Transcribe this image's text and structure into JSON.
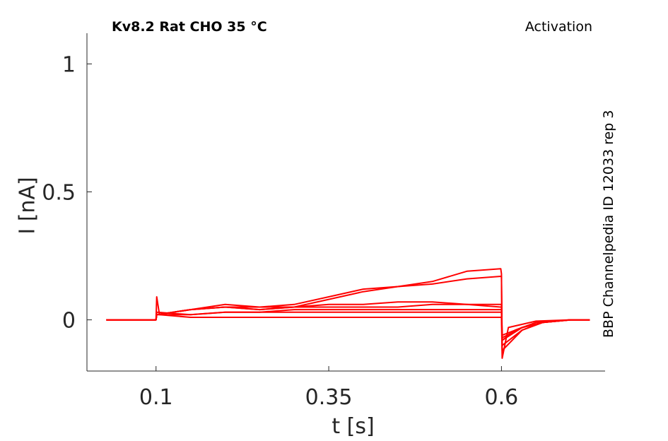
{
  "chart_data": {
    "type": "line",
    "title": "Kv8.2  Rat  CHO  35 °C",
    "protocol_label": "Activation",
    "side_label": "BBP Channelpedia ID 12033 rep 3",
    "xlabel": "t [s]",
    "ylabel": "I [nA]",
    "xlim": [
      0.0,
      0.75
    ],
    "ylim": [
      -0.2,
      1.12
    ],
    "xticks": [
      0.1,
      0.35,
      0.6
    ],
    "xtick_labels": [
      "0.1",
      "0.35",
      "0.6"
    ],
    "yticks": [
      0,
      0.5,
      1
    ],
    "ytick_labels": [
      "0",
      "0.5",
      "1"
    ],
    "grid": false,
    "line_color": "#ff0000",
    "series": [
      {
        "x": [
          0.028,
          0.1,
          0.101,
          0.105,
          0.15,
          0.2,
          0.25,
          0.3,
          0.35,
          0.4,
          0.45,
          0.5,
          0.55,
          0.599,
          0.6,
          0.601,
          0.61,
          0.65,
          0.7,
          0.728
        ],
        "y": [
          0.0,
          0.0,
          0.09,
          0.02,
          0.01,
          0.01,
          0.01,
          0.01,
          0.01,
          0.01,
          0.01,
          0.01,
          0.01,
          0.01,
          0.01,
          -0.15,
          -0.03,
          -0.005,
          0.0,
          0.0
        ]
      },
      {
        "x": [
          0.028,
          0.1,
          0.101,
          0.15,
          0.2,
          0.25,
          0.3,
          0.35,
          0.4,
          0.45,
          0.5,
          0.55,
          0.599,
          0.6,
          0.601,
          0.62,
          0.65,
          0.7,
          0.728
        ],
        "y": [
          0.0,
          0.0,
          0.03,
          0.02,
          0.03,
          0.03,
          0.03,
          0.03,
          0.03,
          0.03,
          0.03,
          0.03,
          0.03,
          0.03,
          -0.08,
          -0.04,
          -0.01,
          0.0,
          0.0
        ]
      },
      {
        "x": [
          0.028,
          0.1,
          0.101,
          0.15,
          0.2,
          0.25,
          0.3,
          0.35,
          0.4,
          0.45,
          0.5,
          0.55,
          0.599,
          0.6,
          0.601,
          0.63,
          0.66,
          0.7,
          0.728
        ],
        "y": [
          0.0,
          0.0,
          0.02,
          0.02,
          0.03,
          0.03,
          0.04,
          0.04,
          0.04,
          0.04,
          0.04,
          0.04,
          0.04,
          0.04,
          -0.06,
          -0.03,
          -0.01,
          0.0,
          0.0
        ]
      },
      {
        "x": [
          0.028,
          0.1,
          0.101,
          0.15,
          0.2,
          0.25,
          0.3,
          0.35,
          0.4,
          0.45,
          0.5,
          0.55,
          0.599,
          0.6,
          0.601,
          0.63,
          0.66,
          0.7,
          0.728
        ],
        "y": [
          0.0,
          0.0,
          0.02,
          0.04,
          0.06,
          0.05,
          0.05,
          0.05,
          0.05,
          0.05,
          0.06,
          0.06,
          0.06,
          0.06,
          -0.07,
          -0.03,
          -0.01,
          0.0,
          0.0
        ]
      },
      {
        "x": [
          0.028,
          0.1,
          0.101,
          0.15,
          0.2,
          0.25,
          0.3,
          0.35,
          0.4,
          0.45,
          0.5,
          0.55,
          0.599,
          0.6,
          0.601,
          0.63,
          0.66,
          0.7,
          0.728
        ],
        "y": [
          0.0,
          0.0,
          0.02,
          0.04,
          0.05,
          0.04,
          0.05,
          0.06,
          0.06,
          0.07,
          0.07,
          0.06,
          0.05,
          0.05,
          -0.08,
          -0.03,
          -0.01,
          0.0,
          0.0
        ]
      },
      {
        "x": [
          0.028,
          0.1,
          0.101,
          0.15,
          0.2,
          0.25,
          0.3,
          0.35,
          0.4,
          0.45,
          0.5,
          0.55,
          0.599,
          0.6,
          0.601,
          0.63,
          0.66,
          0.7,
          0.728
        ],
        "y": [
          0.0,
          0.0,
          0.02,
          0.04,
          0.05,
          0.04,
          0.05,
          0.08,
          0.11,
          0.13,
          0.14,
          0.16,
          0.17,
          0.17,
          -0.1,
          -0.04,
          -0.01,
          0.0,
          0.0
        ]
      },
      {
        "x": [
          0.028,
          0.1,
          0.101,
          0.15,
          0.2,
          0.25,
          0.3,
          0.35,
          0.4,
          0.45,
          0.5,
          0.55,
          0.599,
          0.6,
          0.601,
          0.63,
          0.66,
          0.7,
          0.728
        ],
        "y": [
          0.0,
          0.0,
          0.02,
          0.04,
          0.05,
          0.05,
          0.06,
          0.09,
          0.12,
          0.13,
          0.15,
          0.19,
          0.2,
          0.18,
          -0.12,
          -0.04,
          -0.01,
          0.0,
          0.0
        ]
      }
    ]
  }
}
